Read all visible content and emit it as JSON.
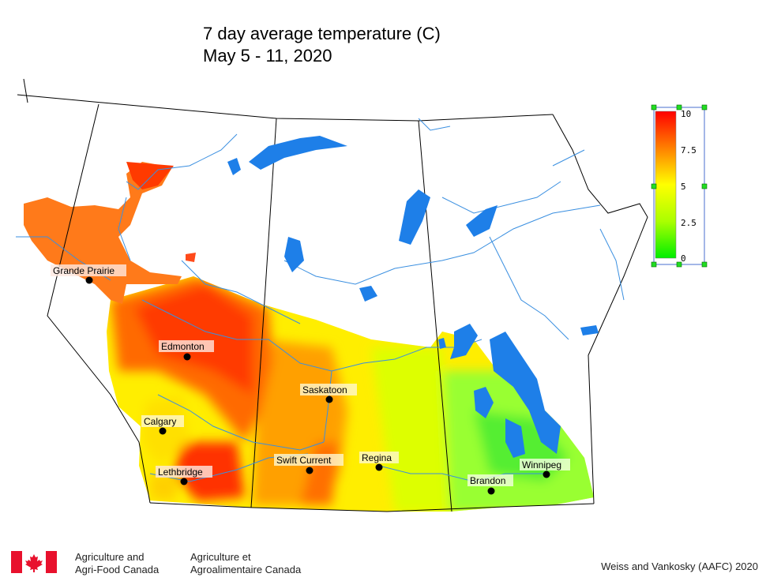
{
  "title_line1": "7 day average temperature (C)",
  "title_line2": "May 5 - 11, 2020",
  "legend": {
    "ticks": [
      "10",
      "7.5",
      "5",
      "2.5",
      "0"
    ],
    "colors": {
      "high": "#ff0000",
      "mid_high": "#ff8000",
      "mid": "#ffff00",
      "mid_low": "#aaff00",
      "low": "#00ee00"
    }
  },
  "cities": [
    {
      "name": "Grande Prairie"
    },
    {
      "name": "Edmonton"
    },
    {
      "name": "Calgary"
    },
    {
      "name": "Lethbridge"
    },
    {
      "name": "Saskatoon"
    },
    {
      "name": "Swift Current"
    },
    {
      "name": "Regina"
    },
    {
      "name": "Brandon"
    },
    {
      "name": "Winnipeg"
    }
  ],
  "footer": {
    "agency_en": [
      "Agriculture and",
      "Agri-Food Canada"
    ],
    "agency_fr": [
      "Agriculture et",
      "Agroalimentaire Canada"
    ],
    "credit": "Weiss and Vankosky (AAFC) 2020"
  },
  "colors": {
    "water": "#1e7fe8",
    "river": "#3a8fe0",
    "boundary": "#000000"
  }
}
